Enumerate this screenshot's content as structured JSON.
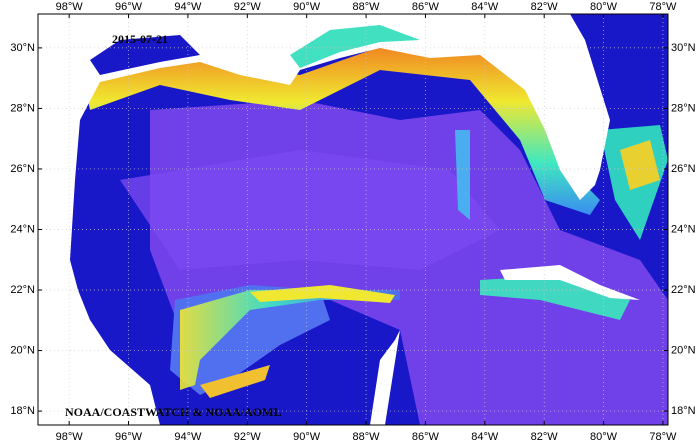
{
  "map": {
    "title": "2015-07-21",
    "credit": "NOAA/COASTWATCH & NOAA/AOML",
    "lonlim": [
      -99.05,
      -77.83
    ],
    "latlim": [
      17.54,
      31.12
    ],
    "lon_ticks": [
      {
        "value": -98,
        "label": "98°W"
      },
      {
        "value": -96,
        "label": "96°W"
      },
      {
        "value": -94,
        "label": "94°W"
      },
      {
        "value": -92,
        "label": "92°W"
      },
      {
        "value": -90,
        "label": "90°W"
      },
      {
        "value": -88,
        "label": "88°W"
      },
      {
        "value": -86,
        "label": "86°W"
      },
      {
        "value": -84,
        "label": "84°W"
      },
      {
        "value": -82,
        "label": "82°W"
      },
      {
        "value": -80,
        "label": "80°W"
      },
      {
        "value": -78,
        "label": "78°W"
      }
    ],
    "lat_ticks": [
      {
        "value": 18,
        "label": "18°N"
      },
      {
        "value": 20,
        "label": "20°N"
      },
      {
        "value": 22,
        "label": "22°N"
      },
      {
        "value": 24,
        "label": "24°N"
      },
      {
        "value": 26,
        "label": "26°N"
      },
      {
        "value": 28,
        "label": "28°N"
      },
      {
        "value": 30,
        "label": "30°N"
      }
    ],
    "grid": true
  }
}
